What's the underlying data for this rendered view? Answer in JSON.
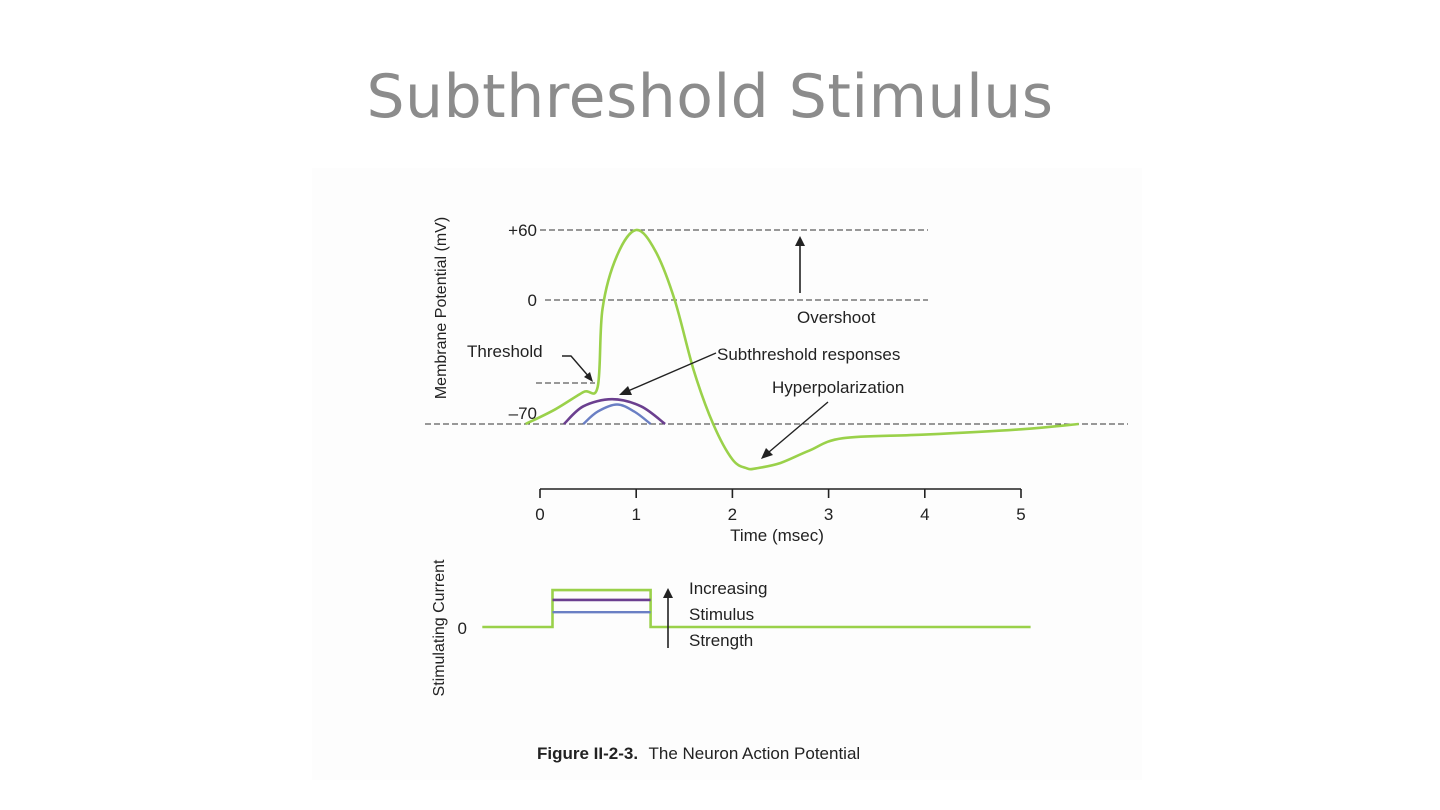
{
  "slide": {
    "title": "Subthreshold Stimulus"
  },
  "figure": {
    "caption_number": "Figure II-2-3.",
    "caption_text": "The Neuron Action Potential"
  },
  "colors": {
    "action_potential": "#9ad14a",
    "subthreshold_large": "#6b3f8f",
    "subthreshold_small": "#6a7fc4",
    "reference_lines": "#333333",
    "title": "#8c8c8c"
  },
  "chart_data": [
    {
      "type": "line",
      "ylabel": "Membrane Potential (mV)",
      "xlabel": "Time (msec)",
      "x_ticks": [
        "0",
        "1",
        "2",
        "3",
        "4",
        "5"
      ],
      "y_tick_labels": [
        "+60",
        "0",
        "–70"
      ],
      "xlim": [
        0,
        5
      ],
      "reference_levels_mV": [
        60,
        0,
        -70
      ],
      "annotations": {
        "threshold": "Threshold",
        "overshoot": "Overshoot",
        "subthreshold": "Subthreshold responses",
        "hyperpolarization": "Hyperpolarization"
      },
      "series": [
        {
          "key": "action_potential",
          "x": [
            -0.15,
            0.15,
            0.45,
            0.6,
            0.65,
            0.8,
            1.0,
            1.2,
            1.4,
            1.6,
            1.8,
            2.0,
            2.15,
            2.25,
            2.5,
            2.8,
            3.15,
            4.0,
            5.0,
            5.6
          ],
          "y": [
            -70,
            -62,
            -52,
            -49,
            -5,
            38,
            60,
            42,
            0,
            -40,
            -70,
            -90,
            -95,
            -95,
            -92,
            -85,
            -78,
            -76,
            -73,
            -70
          ]
        },
        {
          "key": "subthreshold_large",
          "x": [
            0.25,
            0.45,
            0.75,
            1.05,
            1.3
          ],
          "y": [
            -70,
            -60,
            -56,
            -60,
            -70
          ]
        },
        {
          "key": "subthreshold_small",
          "x": [
            0.45,
            0.6,
            0.8,
            0.98,
            1.15
          ],
          "y": [
            -70,
            -63,
            -59,
            -63,
            -70
          ]
        }
      ]
    },
    {
      "type": "line",
      "ylabel": "Stimulating Current",
      "y_tick_labels": [
        "0"
      ],
      "annotation": [
        "Increasing",
        "Stimulus",
        "Strength"
      ],
      "series": [
        {
          "key": "stimulus_large",
          "x": [
            -0.6,
            0.13,
            0.13,
            1.15,
            1.15,
            5.1
          ],
          "y": [
            0,
            0,
            3,
            3,
            0,
            0
          ]
        },
        {
          "key": "stimulus_medium",
          "x": [
            0.13,
            1.15
          ],
          "y": [
            2.2,
            2.2
          ]
        },
        {
          "key": "stimulus_small",
          "x": [
            0.13,
            1.15
          ],
          "y": [
            1.2,
            1.2
          ]
        }
      ]
    }
  ]
}
